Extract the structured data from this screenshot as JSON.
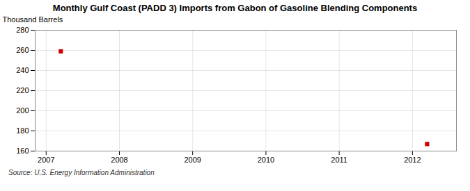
{
  "chart_data": {
    "type": "scatter",
    "title": "Monthly Gulf Coast (PADD 3) Imports from Gabon of Gasoline Blending Components",
    "ylabel": "Thousand Barrels",
    "source": "Source: U.S. Energy Information Administration",
    "x": [
      2007.2,
      2012.2
    ],
    "values": [
      259,
      167
    ],
    "color": "#cc0000",
    "marker": "square",
    "xlim": [
      2006.85,
      2012.6
    ],
    "xticks": [
      2007,
      2008,
      2009,
      2010,
      2011,
      2012
    ],
    "ylim": [
      160,
      280
    ],
    "yticks": [
      160,
      180,
      200,
      220,
      240,
      260,
      280
    ],
    "grid": true
  }
}
